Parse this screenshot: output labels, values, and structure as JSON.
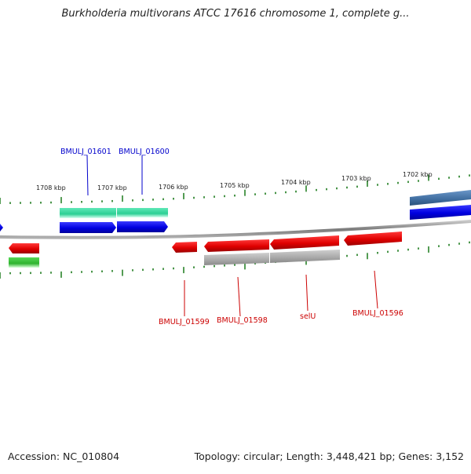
{
  "title": "Burkholderia multivorans ATCC 17616 chromosome 1, complete g...",
  "footer": {
    "accession": "Accession: NC_010804",
    "summary": "Topology: circular; Length: 3,448,421 bp; Genes: 3,152"
  },
  "colors": {
    "backbone": "#8a8a8a",
    "tick": "#1a7a1a",
    "forward_cds": "#0000e6",
    "forward_gene": "#2ed39a",
    "reverse_cds": "#e60000",
    "reverse_gene_gray": "#b3b3b3",
    "reverse_gene_green": "#33b833",
    "steelblue": "#4a77a8",
    "label_blue": "#0000cc",
    "label_red": "#cc0000"
  },
  "kbp_labels": [
    "1708 kbp",
    "1707 kbp",
    "1706 kbp",
    "1705 kbp",
    "1704 kbp",
    "1703 kbp",
    "1702 kbp"
  ],
  "gene_labels": {
    "forward": [
      "BMULJ_01601",
      "BMULJ_01600"
    ],
    "reverse": [
      "BMULJ_01599",
      "BMULJ_01598",
      "selU",
      "BMULJ_01596"
    ]
  }
}
